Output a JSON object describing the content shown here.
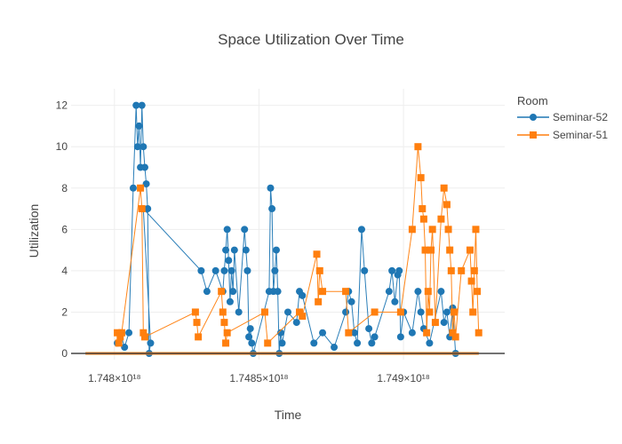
{
  "chart_data": {
    "type": "line",
    "title": "Space Utilization Over Time",
    "xlabel": "Time",
    "ylabel": "Utilization",
    "xlim": [
      1747850000000000000,
      1749350000000000000
    ],
    "ylim": [
      -0.3,
      12.8
    ],
    "x_ticks": [
      {
        "value": 1748000000000000000,
        "label": "1.748×10¹⁸"
      },
      {
        "value": 1748500000000000000,
        "label": "1.7485×10¹⁸"
      },
      {
        "value": 1749000000000000000,
        "label": "1.749×10¹⁸"
      }
    ],
    "y_ticks": [
      0,
      2,
      4,
      6,
      8,
      10,
      12
    ],
    "grid": true,
    "legend": {
      "title": "Room",
      "position": "top-right"
    },
    "series": [
      {
        "name": "Seminar-52",
        "color": "#1f77b4",
        "marker": "circle",
        "x": [
          1748010000000000000,
          1748020000000000000,
          1748035000000000000,
          1748050000000000000,
          1748065000000000000,
          1748075000000000000,
          1748080000000000000,
          1748085000000000000,
          1748090000000000000,
          1748095000000000000,
          1748100000000000000,
          1748105000000000000,
          1748110000000000000,
          1748115000000000000,
          1748120000000000000,
          1748125000000000000,
          1748100000000000000,
          1748300000000000000,
          1748320000000000000,
          1748350000000000000,
          1748375000000000000,
          1748380000000000000,
          1748385000000000000,
          1748390000000000000,
          1748395000000000000,
          1748400000000000000,
          1748405000000000000,
          1748410000000000000,
          1748415000000000000,
          1748430000000000000,
          1748450000000000000,
          1748455000000000000,
          1748460000000000000,
          1748465000000000000,
          1748470000000000000,
          1748475000000000000,
          1748480000000000000,
          1748535000000000000,
          1748540000000000000,
          1748545000000000000,
          1748550000000000000,
          1748555000000000000,
          1748560000000000000,
          1748565000000000000,
          1748570000000000000,
          1748575000000000000,
          1748580000000000000,
          1748600000000000000,
          1748630000000000000,
          1748640000000000000,
          1748650000000000000,
          1748690000000000000,
          1748720000000000000,
          1748760000000000000,
          1748800000000000000,
          1748810000000000000,
          1748820000000000000,
          1748830000000000000,
          1748840000000000000,
          1748855000000000000,
          1748865000000000000,
          1748880000000000000,
          1748890000000000000,
          1748900000000000000,
          1748950000000000000,
          1748960000000000000,
          1748970000000000000,
          1748980000000000000,
          1748985000000000000,
          1748990000000000000,
          1749000000000000000,
          1749030000000000000,
          1749050000000000000,
          1749060000000000000,
          1749070000000000000,
          1749090000000000000,
          1749130000000000000,
          1749140000000000000,
          1749150000000000000,
          1749160000000000000,
          1749170000000000000,
          1749180000000000000
        ],
        "y": [
          0.5,
          1,
          0.3,
          1,
          8,
          12,
          10,
          11,
          9,
          12,
          10,
          9,
          8.2,
          7,
          0,
          0.5,
          7,
          4,
          3,
          4,
          3,
          4,
          5,
          6,
          4.5,
          2.5,
          4,
          3,
          5,
          2,
          6,
          5,
          4,
          0.8,
          1.2,
          0.5,
          0,
          3,
          8,
          7,
          3,
          4,
          5,
          3,
          0,
          1,
          0.5,
          2,
          1.5,
          3,
          2.8,
          0.5,
          1,
          0.3,
          2,
          3,
          2.5,
          1,
          0.5,
          6,
          4,
          1.2,
          0.5,
          0.8,
          3,
          4,
          2.5,
          3.8,
          4,
          0.8,
          2,
          1,
          3,
          2,
          1.2,
          0.5,
          3,
          1.5,
          2,
          0.8,
          2.2,
          0
        ]
      },
      {
        "name": "Seminar-51",
        "color": "#ff7f0e",
        "marker": "square",
        "x": [
          1748010000000000000,
          1748015000000000000,
          1748020000000000000,
          1748025000000000000,
          1748090000000000000,
          1748095000000000000,
          1748100000000000000,
          1748105000000000000,
          1748280000000000000,
          1748285000000000000,
          1748290000000000000,
          1748370000000000000,
          1748375000000000000,
          1748380000000000000,
          1748385000000000000,
          1748390000000000000,
          1748520000000000000,
          1748530000000000000,
          1748640000000000000,
          1748650000000000000,
          1748700000000000000,
          1748705000000000000,
          1748710000000000000,
          1748720000000000000,
          1748800000000000000,
          1748810000000000000,
          1748900000000000000,
          1748990000000000000,
          1749030000000000000,
          1749050000000000000,
          1749060000000000000,
          1749065000000000000,
          1749070000000000000,
          1749075000000000000,
          1749080000000000000,
          1749085000000000000,
          1749090000000000000,
          1749095000000000000,
          1749100000000000000,
          1749110000000000000,
          1749130000000000000,
          1749140000000000000,
          1749150000000000000,
          1749155000000000000,
          1749160000000000000,
          1749165000000000000,
          1749170000000000000,
          1749175000000000000,
          1749180000000000000,
          1749200000000000000,
          1749230000000000000,
          1749235000000000000,
          1749240000000000000,
          1749245000000000000,
          1749250000000000000,
          1749255000000000000,
          1749260000000000000
        ],
        "y": [
          1,
          0.5,
          0.8,
          1,
          8,
          7,
          1,
          0.8,
          2,
          1.5,
          0.8,
          3,
          2,
          1.5,
          0.5,
          1,
          2,
          0.5,
          2,
          1.8,
          4.8,
          2.5,
          4,
          3,
          3,
          1,
          2,
          2,
          6,
          10,
          8.5,
          7,
          6.5,
          5,
          1,
          3,
          2,
          5,
          6,
          1.5,
          6.5,
          8,
          7.2,
          6,
          5,
          4,
          1,
          2,
          0.8,
          4,
          5,
          3.5,
          2,
          4,
          6,
          3,
          1
        ]
      }
    ],
    "baseline_note": ""
  }
}
